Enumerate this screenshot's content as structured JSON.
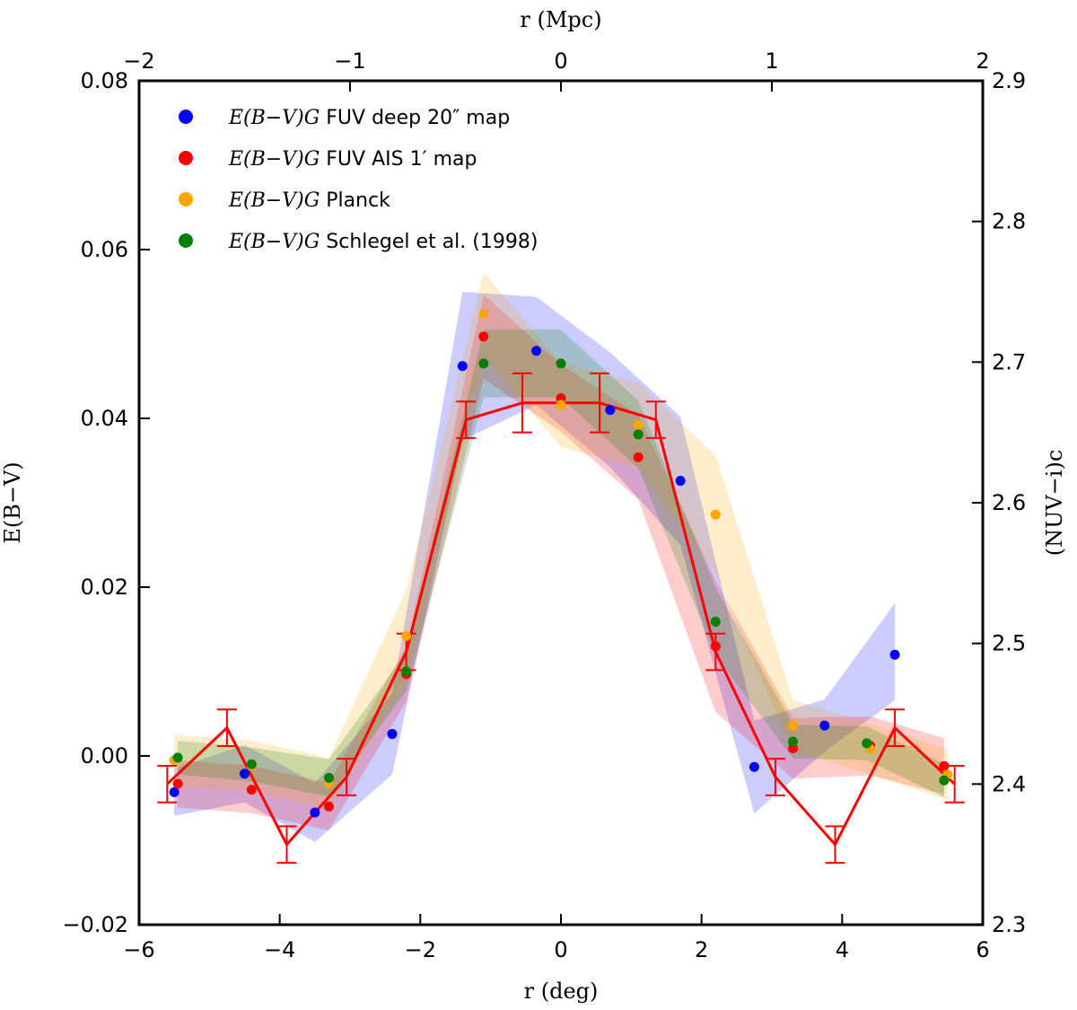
{
  "chart_data": {
    "type": "scatter",
    "xlabel": "r (deg)",
    "x2label": "r (Mpc)",
    "ylabel": "E(B−V)",
    "y2label": "(NUV−i)c",
    "xlim": [
      -6,
      6
    ],
    "x2lim": [
      -2,
      2
    ],
    "ylim": [
      -0.02,
      0.08
    ],
    "y2lim": [
      2.3,
      2.9
    ],
    "xticks": [
      "−6",
      "−4",
      "−2",
      "0",
      "2",
      "4",
      "6"
    ],
    "x2ticks": [
      "−2",
      "−1",
      "0",
      "1",
      "2"
    ],
    "yticks": [
      "−0.02",
      "0.00",
      "0.02",
      "0.04",
      "0.06",
      "0.08"
    ],
    "y2ticks": [
      "2.3",
      "2.4",
      "2.5",
      "2.6",
      "2.7",
      "2.8",
      "2.9"
    ],
    "legend_position": "top-left",
    "series": [
      {
        "name": "E(B−V)G FUV deep 20″ map",
        "legend_math": "E(B−V)G",
        "legend_rest": "FUV deep 20″ map",
        "color": "#0000ff",
        "x": [
          -5.5,
          -4.5,
          -3.5,
          -2.4,
          -1.4,
          -0.35,
          0.7,
          1.7,
          2.75,
          3.75,
          4.75
        ],
        "y": [
          -0.0043,
          -0.0021,
          -0.0067,
          0.0026,
          0.0462,
          0.048,
          0.041,
          0.0326,
          -0.0013,
          0.0036,
          0.012
        ],
        "band_low": [
          -0.0071,
          -0.0055,
          -0.0102,
          -0.0022,
          0.0374,
          0.0416,
          0.0342,
          0.025,
          -0.0068,
          0.0005,
          0.0066
        ],
        "band_high": [
          -0.0015,
          0.0013,
          -0.0032,
          0.0074,
          0.055,
          0.0544,
          0.0478,
          0.0402,
          0.0042,
          0.0067,
          0.0181
        ]
      },
      {
        "name": "E(B−V)G FUV AIS 1′ map",
        "legend_math": "E(B−V)G",
        "legend_rest": "FUV AIS 1′ map",
        "color": "#ff0000",
        "x": [
          -5.45,
          -4.4,
          -3.3,
          -2.2,
          -1.1,
          0,
          1.1,
          2.2,
          3.3,
          4.4,
          5.45
        ],
        "y": [
          -0.0033,
          -0.004,
          -0.006,
          0.0097,
          0.0497,
          0.0424,
          0.0354,
          0.013,
          0.0009,
          0.0012,
          -0.0012
        ],
        "band_low": [
          -0.0061,
          -0.0068,
          -0.0088,
          0.0064,
          0.0447,
          0.0384,
          0.0304,
          0.0052,
          -0.0027,
          -0.0023,
          -0.0045
        ],
        "band_high": [
          -0.0005,
          -0.0012,
          -0.0032,
          0.013,
          0.0547,
          0.0464,
          0.0404,
          0.0208,
          0.0045,
          0.0047,
          0.0021
        ]
      },
      {
        "name": "E(B−V)G Planck",
        "legend_math": "E(B−V)G",
        "legend_rest": "Planck",
        "color": "#ffa500",
        "x": [
          -5.5,
          -4.4,
          -3.3,
          -2.2,
          -1.1,
          0,
          1.1,
          2.2,
          3.3,
          4.4,
          5.5
        ],
        "y": [
          -0.0005,
          -0.0012,
          -0.0032,
          0.0142,
          0.0524,
          0.0416,
          0.0392,
          0.0286,
          0.0036,
          0.0008,
          -0.0022
        ],
        "band_low": [
          -0.0035,
          -0.0042,
          -0.0062,
          0.0087,
          0.0475,
          0.0366,
          0.0342,
          0.0216,
          0.0006,
          -0.0022,
          -0.0052
        ],
        "band_high": [
          0.0025,
          0.0018,
          -0.0002,
          0.0197,
          0.0573,
          0.0466,
          0.0442,
          0.0356,
          0.0066,
          0.0038,
          0.0008
        ]
      },
      {
        "name": "E(B−V)G Schlegel et al. (1998)",
        "legend_math": "E(B−V)G",
        "legend_rest": "Schlegel et al. (1998)",
        "color": "#008000",
        "x": [
          -5.45,
          -4.4,
          -3.3,
          -2.2,
          -1.1,
          0,
          1.1,
          2.2,
          3.3,
          4.35,
          5.45
        ],
        "y": [
          -0.0002,
          -0.001,
          -0.0026,
          0.01,
          0.0465,
          0.0465,
          0.0381,
          0.0159,
          0.0017,
          0.0015,
          -0.0029
        ],
        "band_low": [
          -0.0022,
          -0.003,
          -0.0048,
          0.0077,
          0.0425,
          0.0425,
          0.0341,
          0.0119,
          -0.0003,
          -0.0005,
          -0.0049
        ],
        "band_high": [
          0.0018,
          0.001,
          -0.0004,
          0.0123,
          0.0505,
          0.0505,
          0.0421,
          0.0199,
          0.0037,
          0.0035,
          -0.0009
        ]
      }
    ],
    "line_series": {
      "axis": "right",
      "color": "#ff0000",
      "x": [
        -5.6,
        -4.75,
        -3.9,
        -3.05,
        -2.2,
        -1.35,
        -0.55,
        0.55,
        1.35,
        2.2,
        3.05,
        3.9,
        4.75,
        5.6
      ],
      "y": [
        2.4,
        2.44,
        2.357,
        2.405,
        2.494,
        2.659,
        2.671,
        2.671,
        2.659,
        2.494,
        2.405,
        2.357,
        2.44,
        2.4
      ],
      "err": [
        0.013,
        0.013,
        0.013,
        0.013,
        0.013,
        0.013,
        0.021,
        0.021,
        0.013,
        0.013,
        0.013,
        0.013,
        0.013,
        0.013
      ]
    }
  }
}
